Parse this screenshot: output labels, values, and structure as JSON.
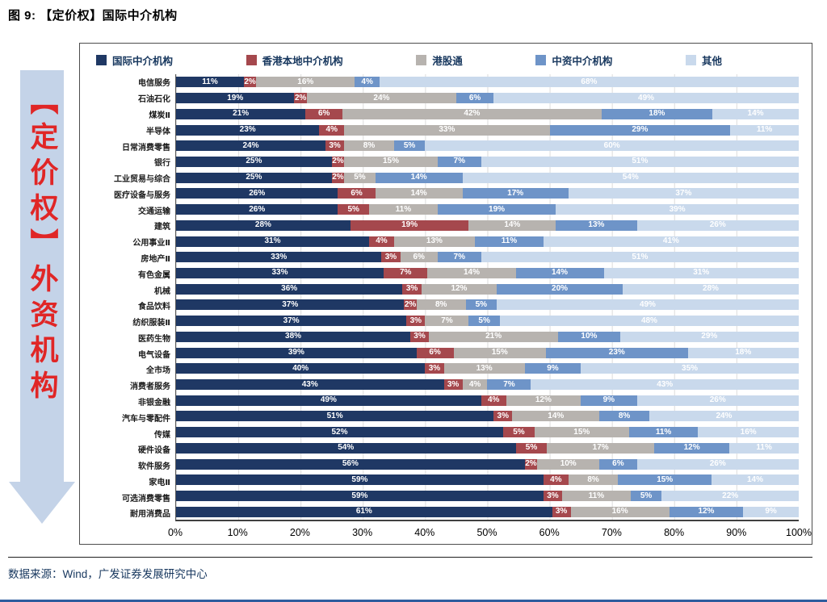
{
  "page": {
    "title": "图 9: 【定价权】国际中介机构",
    "source": "数据来源：Wind，广发证券发展研究中心"
  },
  "side_label": {
    "text": "【定价权】外资机构",
    "text_color": "#E02626",
    "arrow_color": "#C4D3E8"
  },
  "chart_data": {
    "type": "bar",
    "variant": "horizontal-stacked",
    "unit": "%",
    "xlim": [
      0,
      100
    ],
    "grid": true,
    "legend_position": "top",
    "x_ticks": [
      "0%",
      "10%",
      "20%",
      "30%",
      "40%",
      "50%",
      "60%",
      "70%",
      "80%",
      "90%",
      "100%"
    ],
    "categories": [
      "电信服务",
      "石油石化",
      "煤炭Ⅱ",
      "半导体",
      "日常消费零售",
      "银行",
      "工业贸易与综合",
      "医疗设备与服务",
      "交通运输",
      "建筑",
      "公用事业Ⅱ",
      "房地产Ⅱ",
      "有色金属",
      "机械",
      "食品饮料",
      "纺织服装Ⅱ",
      "医药生物",
      "电气设备",
      "全市场",
      "消费者服务",
      "非银金融",
      "汽车与零配件",
      "传媒",
      "硬件设备",
      "软件服务",
      "家电Ⅱ",
      "可选消费零售",
      "耐用消费品"
    ],
    "series": [
      {
        "name": "国际中介机构",
        "color": "#1F3864",
        "values": [
          11,
          19,
          21,
          23,
          24,
          25,
          25,
          26,
          26,
          28,
          31,
          33,
          33,
          36,
          37,
          37,
          38,
          39,
          40,
          43,
          49,
          51,
          52,
          54,
          56,
          59,
          59,
          61
        ]
      },
      {
        "name": "香港本地中介机构",
        "color": "#A5484D",
        "values": [
          2,
          2,
          6,
          4,
          3,
          2,
          2,
          6,
          5,
          19,
          4,
          3,
          7,
          3,
          2,
          3,
          3,
          6,
          3,
          3,
          4,
          3,
          5,
          5,
          2,
          4,
          3,
          3
        ]
      },
      {
        "name": "港股通",
        "color": "#B7B3AF",
        "values": [
          16,
          24,
          42,
          33,
          8,
          15,
          5,
          14,
          11,
          14,
          13,
          6,
          14,
          12,
          8,
          7,
          21,
          15,
          13,
          4,
          12,
          14,
          15,
          17,
          10,
          8,
          11,
          16
        ]
      },
      {
        "name": "中资中介机构",
        "color": "#6E94C8",
        "values": [
          4,
          6,
          18,
          29,
          5,
          7,
          14,
          17,
          19,
          13,
          11,
          7,
          14,
          20,
          5,
          5,
          10,
          23,
          9,
          7,
          9,
          8,
          11,
          12,
          6,
          15,
          5,
          12
        ]
      },
      {
        "name": "其他",
        "color": "#C9D9EC",
        "values": [
          68,
          49,
          14,
          11,
          60,
          51,
          54,
          37,
          39,
          26,
          41,
          51,
          31,
          28,
          49,
          48,
          29,
          18,
          35,
          43,
          26,
          24,
          16,
          11,
          26,
          14,
          22,
          9
        ]
      }
    ]
  }
}
